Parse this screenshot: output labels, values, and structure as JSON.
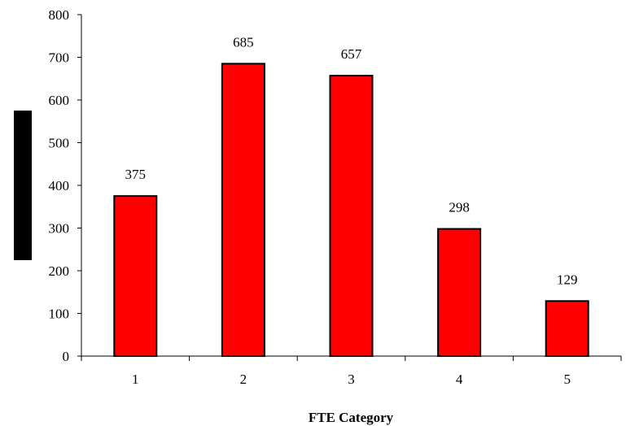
{
  "chart_data": {
    "type": "bar",
    "categories": [
      "1",
      "2",
      "3",
      "4",
      "5"
    ],
    "values": [
      375,
      685,
      657,
      298,
      129
    ],
    "data_labels": [
      "375",
      "685",
      "657",
      "298",
      "129"
    ],
    "title": "",
    "xlabel": "FTE Category",
    "ylabel": "",
    "ylim": [
      0,
      800
    ],
    "yticks": [
      "0",
      "100",
      "200",
      "300",
      "400",
      "500",
      "600",
      "700",
      "800"
    ],
    "grid": false,
    "legend": "none",
    "colors": {
      "bar": "#ff0000",
      "bar_stroke": "#000000",
      "axis": "#000000",
      "ylabel_redaction": "#000000"
    }
  }
}
